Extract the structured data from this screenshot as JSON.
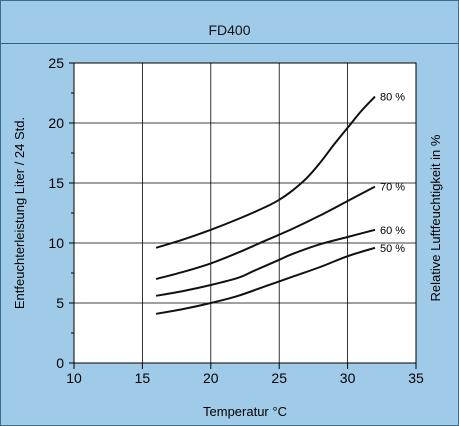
{
  "chart_data": {
    "type": "line",
    "title": "FD400",
    "xlabel": "Temperatur °C",
    "ylabel": "Entfeuchterleistung Liter / 24 Std.",
    "ylabel_right": "Relative Luftfeuchtigkeit in %",
    "xlim": [
      10,
      35
    ],
    "ylim": [
      0,
      25
    ],
    "x_ticks": [
      "10",
      "15",
      "20",
      "25",
      "30",
      "35"
    ],
    "y_ticks": [
      "0",
      "5",
      "10",
      "15",
      "20",
      "25"
    ],
    "grid": true,
    "series": [
      {
        "name": "80 %",
        "x": [
          16,
          18,
          20,
          22,
          24,
          25,
          26,
          27,
          28,
          29,
          30,
          31,
          32
        ],
        "y": [
          9.6,
          10.3,
          11.1,
          12.0,
          13.0,
          13.6,
          14.4,
          15.4,
          16.7,
          18.2,
          19.6,
          21.0,
          22.2
        ]
      },
      {
        "name": "70 %",
        "x": [
          16,
          18,
          20,
          22,
          24,
          26,
          28,
          30,
          32
        ],
        "y": [
          7.0,
          7.6,
          8.3,
          9.2,
          10.2,
          11.2,
          12.3,
          13.5,
          14.7
        ]
      },
      {
        "name": "60 %",
        "x": [
          16,
          18,
          20,
          22,
          23,
          24,
          25,
          26,
          28,
          30,
          32
        ],
        "y": [
          5.6,
          6.0,
          6.5,
          7.1,
          7.6,
          8.1,
          8.6,
          9.1,
          9.9,
          10.5,
          11.1
        ]
      },
      {
        "name": "50 %",
        "x": [
          16,
          18,
          20,
          22,
          24,
          26,
          28,
          30,
          32
        ],
        "y": [
          4.1,
          4.5,
          5.0,
          5.6,
          6.4,
          7.2,
          8.0,
          8.9,
          9.6
        ]
      }
    ]
  }
}
